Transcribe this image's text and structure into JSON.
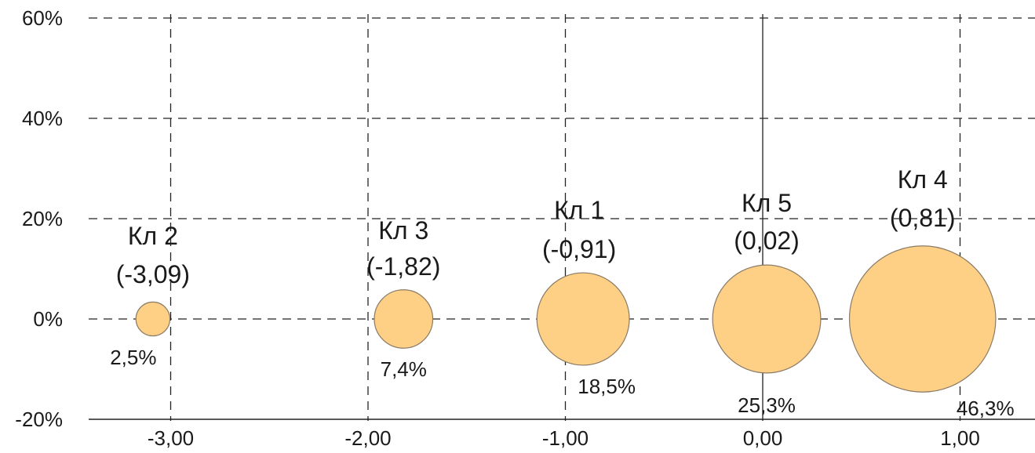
{
  "chart_data": {
    "type": "bubble",
    "title": "",
    "xlabel": "",
    "ylabel": "",
    "xlim": [
      -3.5,
      1.3
    ],
    "ylim": [
      -20,
      60
    ],
    "x_ticks": [
      -3,
      -2,
      -1,
      0,
      1
    ],
    "x_tick_labels": [
      "-3,00",
      "-2,00",
      "-1,00",
      "0,00",
      "1,00"
    ],
    "y_ticks": [
      -20,
      0,
      20,
      40,
      60
    ],
    "y_tick_labels": [
      "-20%",
      "0%",
      "20%",
      "40%",
      "60%"
    ],
    "grid": "dashed",
    "bubble_color": "#fdd086",
    "bubble_stroke": "#8a7a66",
    "points": [
      {
        "name": "Кл 2",
        "value_label": "(-3,09)",
        "x": -3.09,
        "y": 0,
        "share": 2.5,
        "share_label": "2,5%"
      },
      {
        "name": "Кл 3",
        "value_label": "(-1,82)",
        "x": -1.82,
        "y": 0,
        "share": 7.4,
        "share_label": "7,4%"
      },
      {
        "name": "Кл 1",
        "value_label": "(-0,91)",
        "x": -0.91,
        "y": 0,
        "share": 18.5,
        "share_label": "18,5%"
      },
      {
        "name": "Кл 5",
        "value_label": "(0,02)",
        "x": 0.02,
        "y": 0,
        "share": 25.3,
        "share_label": "25,3%"
      },
      {
        "name": "Кл 4",
        "value_label": "(0,81)",
        "x": 0.81,
        "y": 0,
        "share": 46.3,
        "share_label": "46,3%"
      }
    ]
  }
}
